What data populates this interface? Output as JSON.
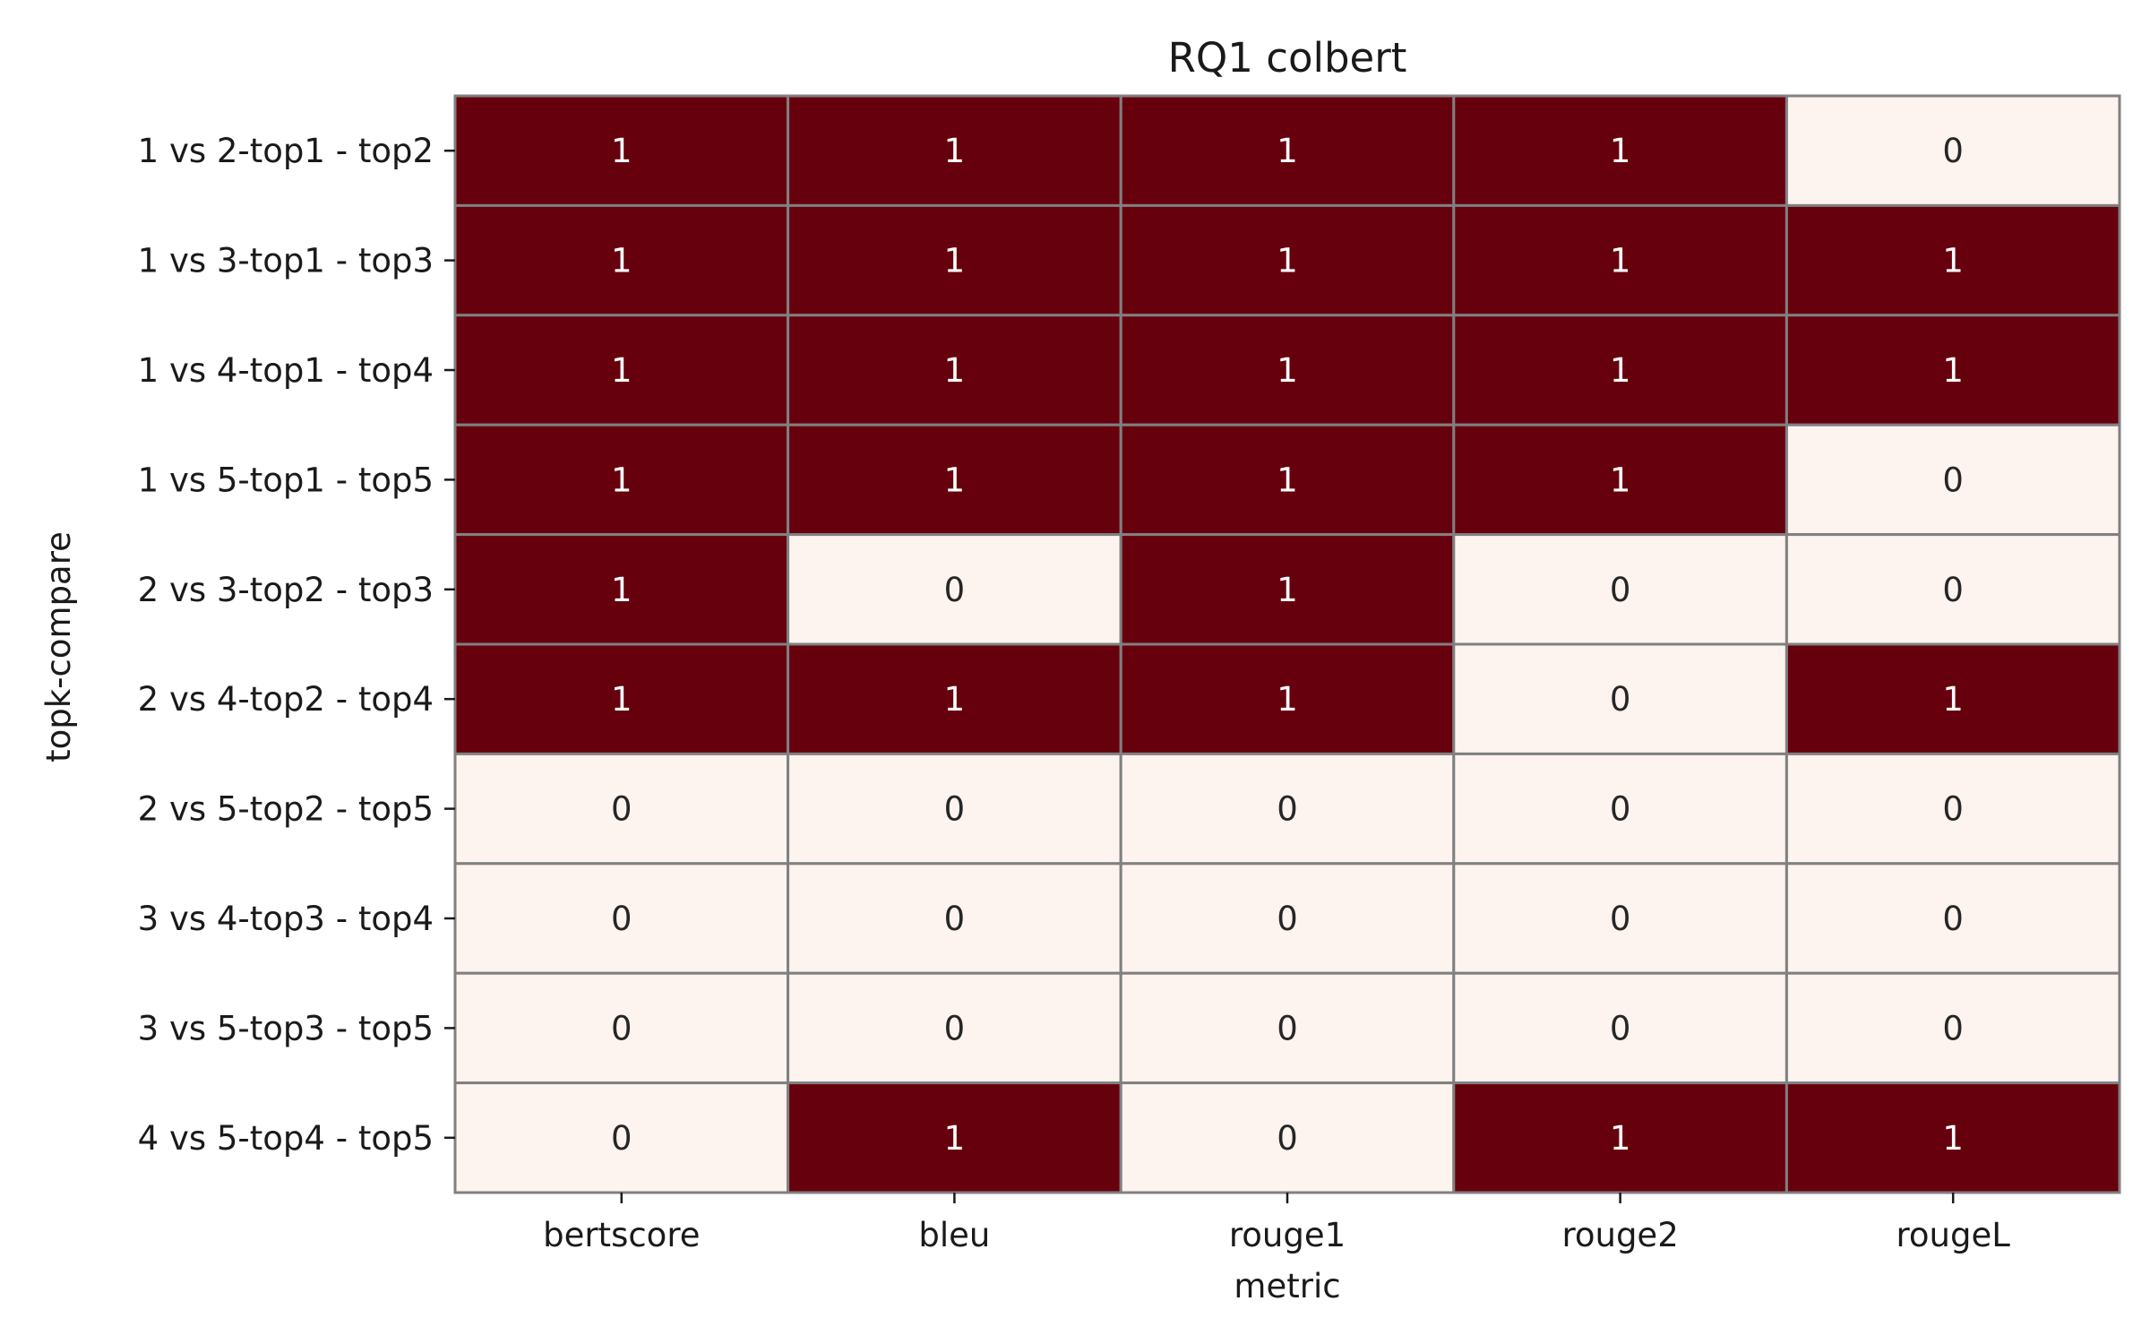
{
  "chart_data": {
    "type": "heatmap",
    "title": "RQ1 colbert",
    "xlabel": "metric",
    "ylabel": "topk-compare",
    "x_categories": [
      "bertscore",
      "bleu",
      "rouge1",
      "rouge2",
      "rougeL"
    ],
    "y_categories": [
      "1 vs 2-top1 - top2",
      "1 vs 3-top1 - top3",
      "1 vs 4-top1 - top4",
      "1 vs 5-top1 - top5",
      "2 vs 3-top2 - top3",
      "2 vs 4-top2 - top4",
      "2 vs 5-top2 - top5",
      "3 vs 4-top3 - top4",
      "3 vs 5-top3 - top5",
      "4 vs 5-top4 - top5"
    ],
    "values": [
      [
        1,
        1,
        1,
        1,
        0
      ],
      [
        1,
        1,
        1,
        1,
        1
      ],
      [
        1,
        1,
        1,
        1,
        1
      ],
      [
        1,
        1,
        1,
        1,
        0
      ],
      [
        1,
        0,
        1,
        0,
        0
      ],
      [
        1,
        1,
        1,
        0,
        1
      ],
      [
        0,
        0,
        0,
        0,
        0
      ],
      [
        0,
        0,
        0,
        0,
        0
      ],
      [
        0,
        0,
        0,
        0,
        0
      ],
      [
        0,
        1,
        0,
        1,
        1
      ]
    ],
    "colormap": {
      "0": "#fdf3ef",
      "1": "#67000d"
    },
    "cell_border_color": "#808080",
    "label_colors": {
      "0": "#262626",
      "1": "#ffffff"
    },
    "colorbar": false,
    "grid": false
  }
}
